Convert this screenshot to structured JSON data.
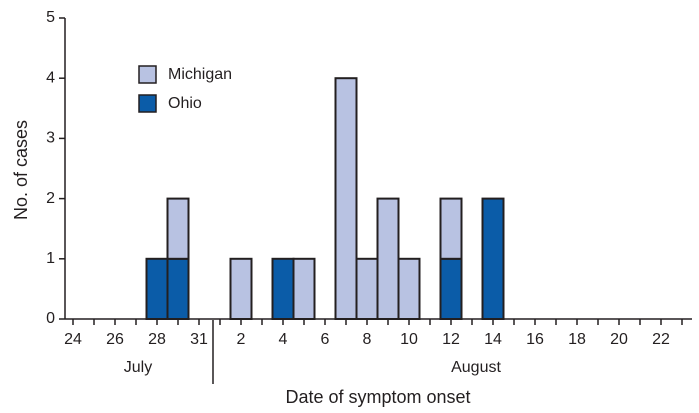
{
  "chart_data": {
    "type": "bar",
    "stacked": true,
    "xlabel": "Date of symptom onset",
    "ylabel": "No. of cases",
    "month_labels": [
      "July",
      "August"
    ],
    "categories": [
      "24",
      null,
      "26",
      null,
      "28",
      null,
      "31",
      null,
      "2",
      null,
      "4",
      null,
      "6",
      null,
      "8",
      null,
      "10",
      null,
      "12",
      null,
      "14",
      null,
      "16",
      null,
      "18",
      null,
      "20",
      null,
      "22",
      null
    ],
    "series": [
      {
        "name": "Michigan",
        "color": "#b8c2e2",
        "values": [
          0,
          0,
          0,
          0,
          0,
          1,
          0,
          0,
          1,
          0,
          0,
          1,
          0,
          4,
          1,
          2,
          1,
          0,
          1,
          0,
          0,
          0,
          0,
          0,
          0,
          0,
          0,
          0,
          0,
          0
        ]
      },
      {
        "name": "Ohio",
        "color": "#0b5ca8",
        "values": [
          0,
          0,
          0,
          0,
          1,
          1,
          0,
          0,
          0,
          0,
          1,
          0,
          0,
          0,
          0,
          0,
          0,
          0,
          1,
          0,
          2,
          0,
          0,
          0,
          0,
          0,
          0,
          0,
          0,
          0
        ]
      }
    ],
    "ylim": [
      0,
      5
    ],
    "yticks": [
      0,
      1,
      2,
      3,
      4,
      5
    ],
    "grid": false
  }
}
